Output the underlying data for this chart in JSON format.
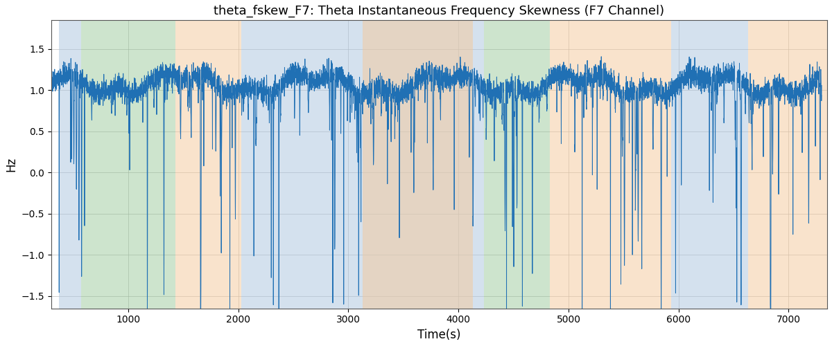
{
  "title": "theta_fskew_F7: Theta Instantaneous Frequency Skewness (F7 Channel)",
  "xlabel": "Time(s)",
  "ylabel": "Hz",
  "xlim": [
    300,
    7350
  ],
  "ylim": [
    -1.65,
    1.85
  ],
  "line_color": "#2070b4",
  "line_width": 0.7,
  "bg_color": "#ffffff",
  "grid_color": "#b0b0b0",
  "regions": [
    {
      "start": 370,
      "end": 570,
      "color": "#aac4de",
      "alpha": 0.5
    },
    {
      "start": 570,
      "end": 1430,
      "color": "#90c490",
      "alpha": 0.45
    },
    {
      "start": 1430,
      "end": 2030,
      "color": "#f5c99a",
      "alpha": 0.5
    },
    {
      "start": 2030,
      "end": 4130,
      "color": "#aac4de",
      "alpha": 0.5
    },
    {
      "start": 4130,
      "end": 4230,
      "color": "#aac4de",
      "alpha": 0.5
    },
    {
      "start": 4230,
      "end": 4830,
      "color": "#90c490",
      "alpha": 0.45
    },
    {
      "start": 4830,
      "end": 5930,
      "color": "#f5c99a",
      "alpha": 0.5
    },
    {
      "start": 5930,
      "end": 6630,
      "color": "#aac4de",
      "alpha": 0.5
    },
    {
      "start": 6630,
      "end": 7350,
      "color": "#f5c99a",
      "alpha": 0.5
    }
  ],
  "orange_overlay_start": 3130,
  "orange_overlay_end": 4130,
  "seed": 42,
  "n_points": 7000,
  "t_start": 300,
  "t_end": 7300
}
